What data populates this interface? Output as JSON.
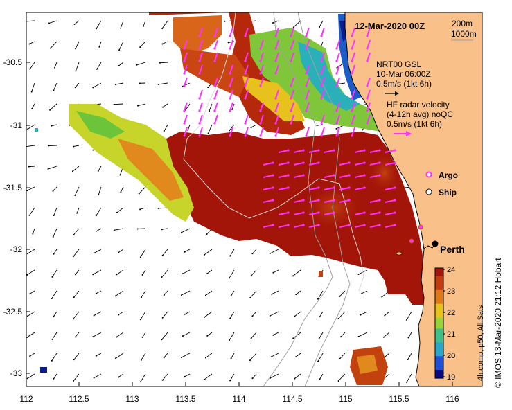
{
  "map": {
    "title": "12-Mar-2020 00Z",
    "depth_labels": [
      "200m",
      "1000m"
    ],
    "place": "Perth",
    "x_ticks": [
      "112",
      "112.5",
      "113",
      "113.5",
      "114",
      "114.5",
      "115",
      "115.5",
      "116"
    ],
    "y_ticks": [
      "-30.5",
      "-31",
      "-31.5",
      "-32",
      "-32.5",
      "-33"
    ],
    "model_legend": [
      "NRT00 GSL",
      "10-Mar 06:00Z",
      "0.5m/s (1kt 6h)"
    ],
    "radar_legend": [
      "HF radar velocity",
      "(4-12h avg) noQC",
      "0.5m/s (1kt 6h)"
    ],
    "markers": [
      {
        "label": "Argo",
        "color": "#ff33ff"
      },
      {
        "label": "Ship",
        "color": "#000000"
      }
    ],
    "colorbar": {
      "ticks": [
        "24",
        "23",
        "22",
        "21",
        "20",
        "19"
      ],
      "label": "4h comp, p50, All Sats",
      "range": [
        19,
        24
      ]
    },
    "credit": "© IMOS 13-Mar-2020 21:12 Hobart",
    "colors": {
      "land": "#f9c08a",
      "sst_hot": "#a31508",
      "radar_arrow": "#ff33ff",
      "model_arrow": "#000000"
    }
  }
}
